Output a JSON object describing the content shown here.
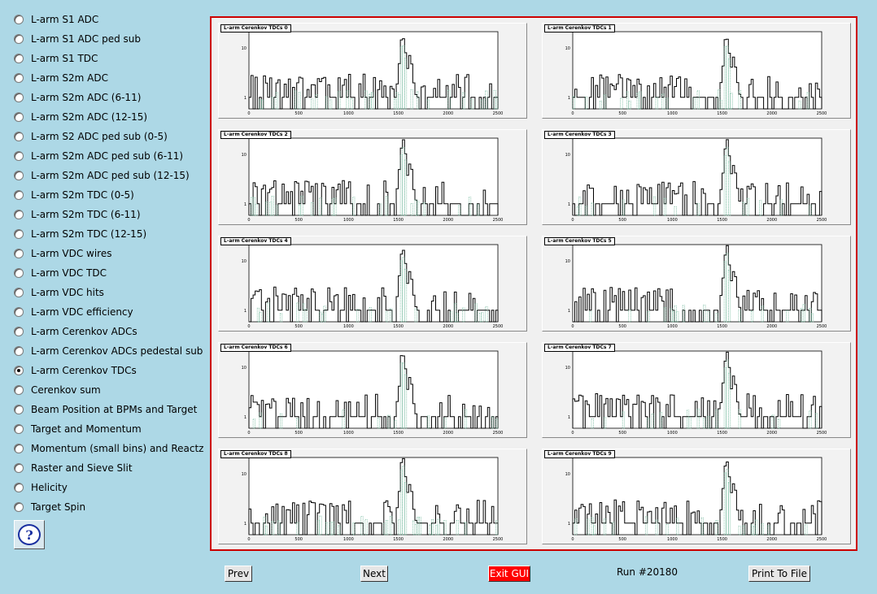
{
  "sidebar": {
    "items": [
      {
        "label": "L-arm S1 ADC",
        "checked": false
      },
      {
        "label": "L-arm S1 ADC ped sub",
        "checked": false
      },
      {
        "label": "L-arm S1 TDC",
        "checked": false
      },
      {
        "label": "L-arm S2m ADC",
        "checked": false
      },
      {
        "label": "L-arm S2m ADC (6-11)",
        "checked": false
      },
      {
        "label": "L-arm S2m ADC (12-15)",
        "checked": false
      },
      {
        "label": "L-arm S2 ADC ped sub (0-5)",
        "checked": false
      },
      {
        "label": "L-arm S2m ADC ped sub (6-11)",
        "checked": false
      },
      {
        "label": "L-arm S2m ADC ped sub (12-15)",
        "checked": false
      },
      {
        "label": "L-arm S2m TDC (0-5)",
        "checked": false
      },
      {
        "label": "L-arm S2m TDC (6-11)",
        "checked": false
      },
      {
        "label": "L-arm S2m TDC (12-15)",
        "checked": false
      },
      {
        "label": "L-arm VDC wires",
        "checked": false
      },
      {
        "label": "L-arm VDC TDC",
        "checked": false
      },
      {
        "label": "L-arm VDC hits",
        "checked": false
      },
      {
        "label": "L-arm VDC efficiency",
        "checked": false
      },
      {
        "label": "L-arm Cerenkov ADCs",
        "checked": false
      },
      {
        "label": "L-arm Cerenkov ADCs pedestal sub",
        "checked": false
      },
      {
        "label": "L-arm Cerenkov TDCs",
        "checked": true
      },
      {
        "label": "Cerenkov sum",
        "checked": false
      },
      {
        "label": "Beam Position at BPMs and Target",
        "checked": false
      },
      {
        "label": "Target and Momentum",
        "checked": false
      },
      {
        "label": "Momentum (small bins) and Reactz",
        "checked": false
      },
      {
        "label": "Raster and Sieve Slit",
        "checked": false
      },
      {
        "label": "Helicity",
        "checked": false
      },
      {
        "label": "Target Spin",
        "checked": false
      }
    ],
    "help_icon": "question-mark-icon",
    "help_label": "?"
  },
  "pads": [
    {
      "title": "L-arm Cerenkov TDCs 0"
    },
    {
      "title": "L-arm Cerenkov TDCs 1"
    },
    {
      "title": "L-arm Cerenkov TDCs 2"
    },
    {
      "title": "L-arm Cerenkov TDCs 3"
    },
    {
      "title": "L-arm Cerenkov TDCs 4"
    },
    {
      "title": "L-arm Cerenkov TDCs 5"
    },
    {
      "title": "L-arm Cerenkov TDCs 6"
    },
    {
      "title": "L-arm Cerenkov TDCs 7"
    },
    {
      "title": "L-arm Cerenkov TDCs 8"
    },
    {
      "title": "L-arm Cerenkov TDCs 9"
    }
  ],
  "chart_data": {
    "type": "bar",
    "x_ticks": [
      "0",
      "500",
      "1000",
      "1500",
      "2000",
      "2500"
    ],
    "xlim": [
      0,
      2500
    ],
    "log_y": true,
    "y_ticks": [
      "1",
      "10"
    ],
    "grid": false,
    "legend": "none",
    "peak_x": 1550,
    "series_colors": {
      "histogram": "#000000",
      "overlay": "#5fae8e"
    }
  },
  "footer": {
    "prev_label": "Prev",
    "next_label": "Next",
    "exit_label": "Exit GUI",
    "run_label": "Run #20180",
    "print_label": "Print To File"
  },
  "colors": {
    "background": "#add8e6",
    "frame": "#cc0000",
    "exit": "#ff0000"
  }
}
